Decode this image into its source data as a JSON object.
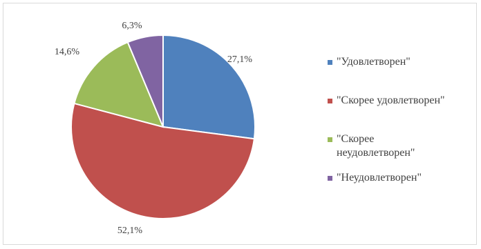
{
  "chart_data": {
    "type": "pie",
    "start_angle_deg": 0,
    "direction": "clockwise",
    "slices": [
      {
        "label": "\"Удовлетворен\"",
        "value": 27.1,
        "value_label": "27,1%",
        "color": "#4f81bd"
      },
      {
        "label": "\"Скорее удовлетворен\"",
        "value": 52.1,
        "value_label": "52,1%",
        "color": "#c0504d"
      },
      {
        "label": "\"Скорее неудовлетворен\"",
        "value": 14.6,
        "value_label": "14,6%",
        "color": "#9bbb59"
      },
      {
        "label": "\"Неудовлетворен\"",
        "value": 6.3,
        "value_label": "6,3%",
        "color": "#8064a2"
      }
    ],
    "legend": {
      "position": "right"
    }
  }
}
